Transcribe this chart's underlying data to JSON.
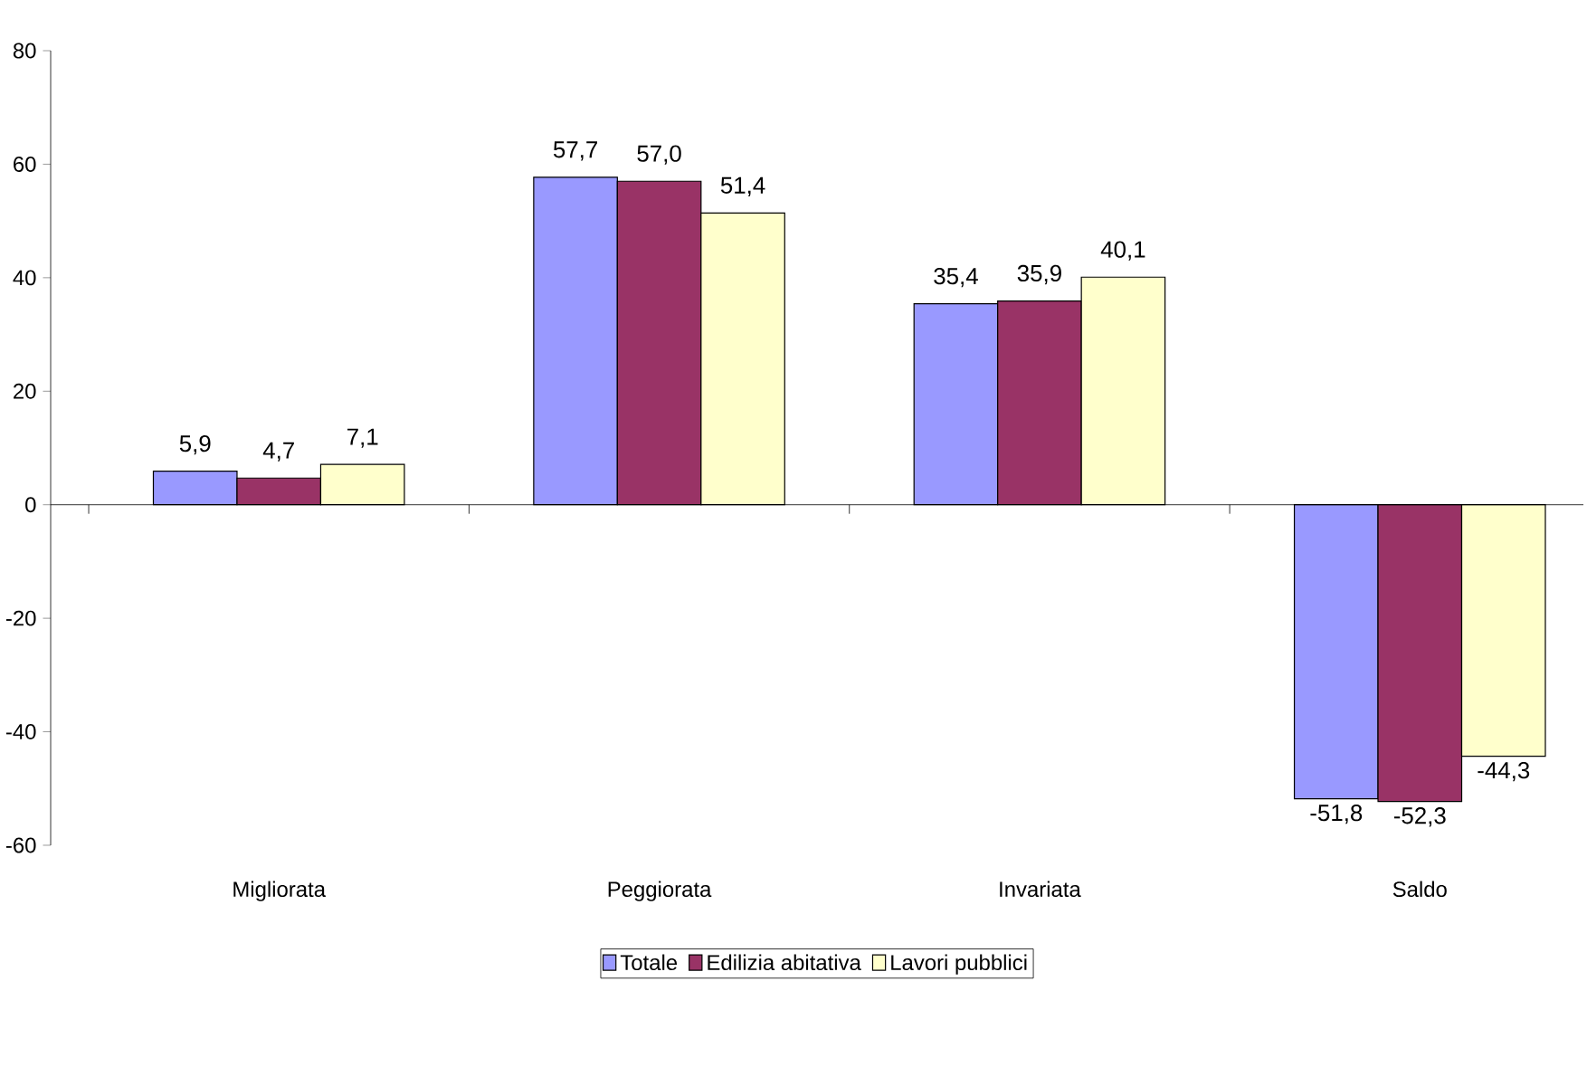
{
  "chart_data": {
    "type": "bar",
    "categories": [
      "Migliorata",
      "Peggiorata",
      "Invariata",
      "Saldo"
    ],
    "series": [
      {
        "name": "Totale",
        "color": "#9999ff",
        "values": [
          5.9,
          57.7,
          35.4,
          -51.8
        ],
        "value_labels": [
          "5,9",
          "57,7",
          "35,4",
          "-51,8"
        ]
      },
      {
        "name": "Edilizia abitativa",
        "color": "#993366",
        "values": [
          4.7,
          57.0,
          35.9,
          -52.3
        ],
        "value_labels": [
          "4,7",
          "57,0",
          "35,9",
          "-52,3"
        ]
      },
      {
        "name": "Lavori pubblici",
        "color": "#ffffcc",
        "values": [
          7.1,
          51.4,
          40.1,
          -44.3
        ],
        "value_labels": [
          "7,1",
          "51,4",
          "40,1",
          "-44,3"
        ]
      }
    ],
    "ylim": [
      -60,
      80
    ],
    "yticks": [
      -60,
      -40,
      -20,
      0,
      20,
      40,
      60,
      80
    ],
    "legend": "bottom"
  }
}
